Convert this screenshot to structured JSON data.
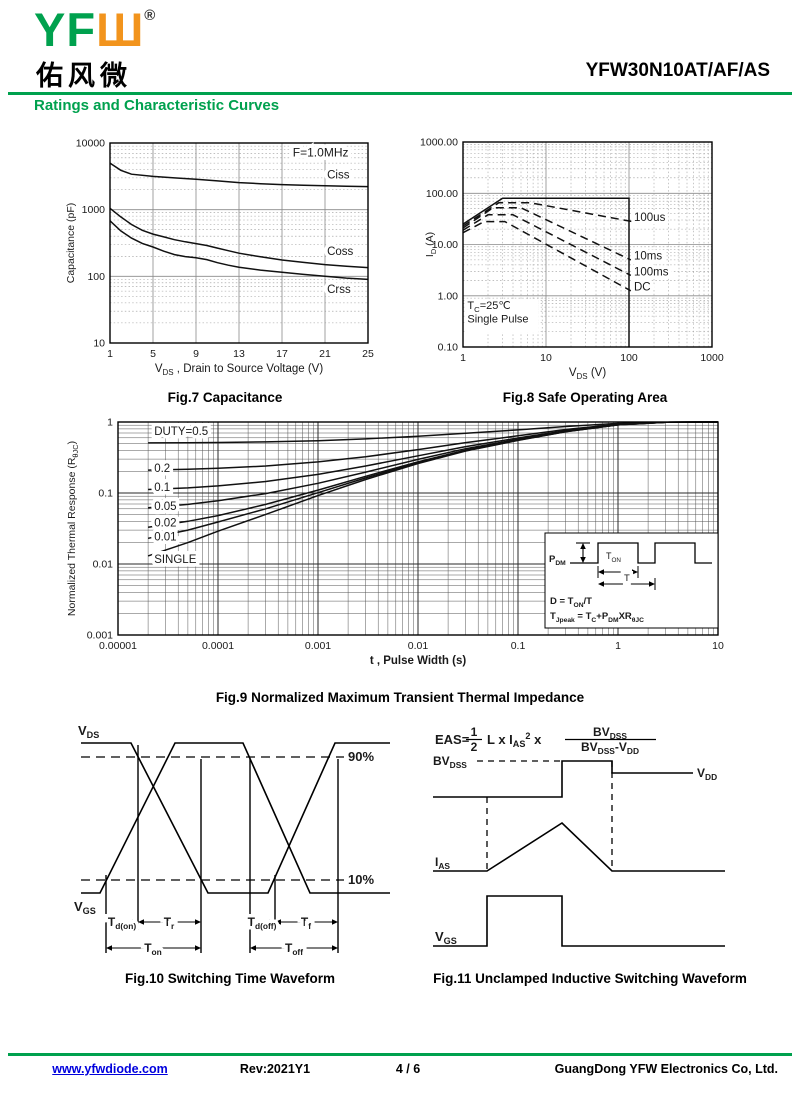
{
  "header": {
    "logo_en_green": "YF",
    "logo_en_orange": "Ш",
    "registered_mark": "®",
    "logo_chinese": "佑风微",
    "part_number": "YFW30N10AT/AF/AS",
    "section_title": "Ratings and Characteristic Curves"
  },
  "colors": {
    "green": "#00A14E",
    "orange": "#F2941D",
    "link_blue": "#0000DD",
    "curve_black": "#111111",
    "grid_gray": "#8a8a8a"
  },
  "chart_data": [
    {
      "id": "fig7",
      "type": "line",
      "title": "Fig.7 Capacitance",
      "xscale": "linear",
      "yscale": "log",
      "xlim": [
        1,
        25
      ],
      "ylim": [
        10,
        10000
      ],
      "xticks": [
        1,
        5,
        9,
        13,
        17,
        21,
        25
      ],
      "yticks": [
        10000,
        1000,
        100,
        10
      ],
      "ytick_labels": [
        "10000",
        "1000",
        "100",
        "10"
      ],
      "xlabel": "V_{DS} , Drain to Source Voltage (V)",
      "ylabel": "Capacitance (pF)",
      "annotation": {
        "text": "F=1.0MHz",
        "at": [
          18.0,
          6300
        ]
      },
      "grid": true,
      "legend_position": "labels-on-curves",
      "series": [
        {
          "name": "Ciss",
          "style": "solid",
          "label_at": [
            21.2,
            2950
          ],
          "x": [
            1,
            2,
            3,
            5,
            7,
            9,
            11,
            13,
            15,
            17,
            19,
            21,
            23,
            25
          ],
          "y": [
            5000,
            3900,
            3400,
            3150,
            3000,
            2850,
            2700,
            2550,
            2450,
            2380,
            2320,
            2280,
            2250,
            2220
          ]
        },
        {
          "name": "Coss",
          "style": "solid",
          "label_at": [
            21.2,
            208
          ],
          "x": [
            1,
            2,
            3,
            4,
            5,
            6,
            7,
            8,
            9,
            10,
            11,
            12,
            13,
            15,
            17,
            19,
            21,
            23,
            25
          ],
          "y": [
            1050,
            780,
            600,
            490,
            430,
            390,
            355,
            330,
            310,
            290,
            265,
            242,
            222,
            196,
            176,
            162,
            150,
            142,
            135
          ]
        },
        {
          "name": "Crss",
          "style": "solid",
          "label_at": [
            21.2,
            56
          ],
          "x": [
            1,
            2,
            3,
            4,
            5,
            6,
            7,
            8,
            9,
            10,
            11,
            12,
            13,
            15,
            17,
            19,
            21,
            23,
            25
          ],
          "y": [
            680,
            480,
            375,
            312,
            275,
            238,
            212,
            198,
            190,
            178,
            160,
            147,
            137,
            124,
            115,
            107,
            100,
            94,
            90
          ]
        }
      ]
    },
    {
      "id": "fig8",
      "type": "line",
      "title": "Fig.8 Safe Operating Area",
      "xscale": "log",
      "yscale": "log",
      "xlim": [
        1,
        1000
      ],
      "ylim": [
        0.1,
        1000
      ],
      "xticks": [
        1,
        10,
        100,
        1000
      ],
      "xtick_labels": [
        "1",
        "10",
        "100",
        "1000"
      ],
      "yticks": [
        1000,
        100,
        10,
        1,
        0.1
      ],
      "ytick_labels": [
        "1000.00",
        "100.00",
        "10.00",
        "1.00",
        "0.10"
      ],
      "xlabel": "V_{DS} (V)",
      "ylabel": "I_{D} (A)",
      "annotation": {
        "lines": [
          "T_{C}=25℃",
          "Single Pulse"
        ],
        "at": [
          1.13,
          0.55
        ],
        "at2": [
          1.13,
          0.3
        ]
      },
      "grid": true,
      "series": [
        {
          "name": "limit",
          "style": "solid",
          "x": [
            1,
            3,
            100,
            100
          ],
          "y": [
            25,
            80,
            80,
            0.1
          ]
        },
        {
          "name": "100us",
          "style": "dashed",
          "label_at": [
            115,
            29
          ],
          "x": [
            1,
            2.7,
            6.5,
            110
          ],
          "y": [
            23,
            65,
            65,
            28
          ]
        },
        {
          "name": "10ms",
          "style": "dashed",
          "label_at": [
            115,
            5.1
          ],
          "x": [
            1,
            2.3,
            5,
            105
          ],
          "y": [
            21,
            52,
            52,
            5
          ]
        },
        {
          "name": "100ms",
          "style": "dashed",
          "label_at": [
            115,
            2.5
          ],
          "x": [
            1,
            2,
            4,
            105
          ],
          "y": [
            19,
            38,
            38,
            2.5
          ]
        },
        {
          "name": "DC",
          "style": "dashed",
          "label_at": [
            115,
            1.28
          ],
          "x": [
            1,
            1.8,
            3.2,
            105
          ],
          "y": [
            17,
            28,
            28,
            1.25
          ]
        }
      ]
    },
    {
      "id": "fig9",
      "type": "line",
      "title": "Fig.9 Normalized Maximum Transient Thermal Impedance",
      "xscale": "log",
      "yscale": "log",
      "xlim": [
        1e-05,
        10
      ],
      "ylim": [
        0.001,
        1
      ],
      "xticks": [
        1e-05,
        0.0001,
        0.001,
        0.01,
        0.1,
        1,
        10
      ],
      "xtick_labels": [
        "0.00001",
        "0.0001",
        "0.001",
        "0.01",
        "0.1",
        "1",
        "10"
      ],
      "yticks": [
        1,
        0.1,
        0.01,
        0.001
      ],
      "ytick_labels": [
        "1",
        "0.1",
        "0.01",
        "0.001"
      ],
      "xlabel": "t , Pulse Width (s)",
      "ylabel": "Normalized Thermal Response (R_{θJC})",
      "grid": true,
      "series": [
        {
          "name": "DUTY=0.5",
          "style": "solid",
          "label_at": [
            2.3e-05,
            0.66
          ],
          "x": [
            2e-05,
            5e-05,
            0.0001,
            0.0003,
            0.001,
            0.003,
            0.01,
            0.03,
            0.1,
            0.3,
            1,
            3,
            10
          ],
          "y": [
            0.507,
            0.51,
            0.515,
            0.525,
            0.546,
            0.578,
            0.63,
            0.695,
            0.775,
            0.865,
            0.955,
            0.995,
            1.0
          ]
        },
        {
          "name": "0.2",
          "style": "solid",
          "label_at": [
            2.3e-05,
            0.197
          ],
          "x": [
            2e-05,
            5e-05,
            0.0001,
            0.0003,
            0.001,
            0.003,
            0.01,
            0.03,
            0.1,
            0.3,
            1,
            3,
            10
          ],
          "y": [
            0.21,
            0.216,
            0.223,
            0.24,
            0.274,
            0.324,
            0.408,
            0.512,
            0.64,
            0.784,
            0.928,
            0.992,
            1.0
          ]
        },
        {
          "name": "0.1",
          "style": "solid",
          "label_at": [
            2.3e-05,
            0.107
          ],
          "x": [
            2e-05,
            5e-05,
            0.0001,
            0.0003,
            0.001,
            0.003,
            0.01,
            0.03,
            0.1,
            0.3,
            1,
            3,
            10
          ],
          "y": [
            0.112,
            0.118,
            0.126,
            0.145,
            0.183,
            0.24,
            0.334,
            0.451,
            0.595,
            0.757,
            0.919,
            0.991,
            1.0
          ]
        },
        {
          "name": "0.05",
          "style": "solid",
          "label_at": [
            2.3e-05,
            0.058
          ],
          "x": [
            2e-05,
            5e-05,
            0.0001,
            0.0003,
            0.001,
            0.003,
            0.01,
            0.03,
            0.1,
            0.3,
            1,
            3,
            10
          ],
          "y": [
            0.062,
            0.069,
            0.078,
            0.098,
            0.137,
            0.197,
            0.297,
            0.421,
            0.573,
            0.743,
            0.914,
            0.991,
            1.0
          ]
        },
        {
          "name": "0.02",
          "style": "solid",
          "label_at": [
            2.3e-05,
            0.0335
          ],
          "x": [
            2e-05,
            5e-05,
            0.0001,
            0.0003,
            0.001,
            0.003,
            0.01,
            0.03,
            0.1,
            0.3,
            1,
            3,
            10
          ],
          "y": [
            0.033,
            0.04,
            0.048,
            0.069,
            0.11,
            0.172,
            0.275,
            0.402,
            0.559,
            0.735,
            0.912,
            0.99,
            1.0
          ]
        },
        {
          "name": "0.01",
          "style": "solid",
          "label_at": [
            2.3e-05,
            0.0215
          ],
          "x": [
            2e-05,
            5e-05,
            0.0001,
            0.0003,
            0.001,
            0.003,
            0.01,
            0.03,
            0.1,
            0.3,
            1,
            3,
            10
          ],
          "y": [
            0.023,
            0.03,
            0.039,
            0.06,
            0.101,
            0.163,
            0.267,
            0.396,
            0.555,
            0.733,
            0.911,
            0.99,
            1.0
          ]
        },
        {
          "name": "SINGLE",
          "style": "solid",
          "label_at": [
            2.3e-05,
            0.0104
          ],
          "x": [
            2e-05,
            5e-05,
            0.0001,
            0.0003,
            0.001,
            0.003,
            0.01,
            0.03,
            0.1,
            0.3,
            1,
            3,
            10
          ],
          "y": [
            0.013,
            0.02,
            0.029,
            0.05,
            0.092,
            0.155,
            0.26,
            0.39,
            0.55,
            0.73,
            0.91,
            0.99,
            1.0
          ]
        }
      ],
      "inset": {
        "pdm": "P_{DM}",
        "ton": "T_{ON}",
        "t": "T",
        "line1": "D = T_{ON}/T",
        "line2": "T_{Jpeak} = T_{C}+P_{DM}XR_{θJC}"
      }
    }
  ],
  "figures": {
    "fig10": {
      "title": "Fig.10 Switching Time Waveform",
      "vds": "V_{DS}",
      "vgs": "V_{GS}",
      "p90": "90%",
      "p10": "10%",
      "td_on": "T_{d(on)}",
      "tr": "T_{r}",
      "td_off": "T_{d(off)}",
      "tf": "T_{f}",
      "ton": "T_{on}",
      "toff": "T_{off}"
    },
    "fig11": {
      "title": "Fig.11 Unclamped Inductive Switching Waveform",
      "eas_prefix": "EAS=",
      "frac1_num": "1",
      "frac1_den": "2",
      "mid": "L x I_{AS}^{2} x",
      "frac2_num": "BV_{DSS}",
      "frac2_den": "BV_{DSS}-V_{DD}",
      "bvdss": "BV_{DSS}",
      "vdd": "V_{DD}",
      "ias": "I_{AS}",
      "vgs": "V_{GS}"
    }
  },
  "footer": {
    "website": "www.yfwdiode.com",
    "rev": "Rev:2021Y1",
    "page": "4 / 6",
    "company": "GuangDong YFW Electronics Co, Ltd."
  }
}
